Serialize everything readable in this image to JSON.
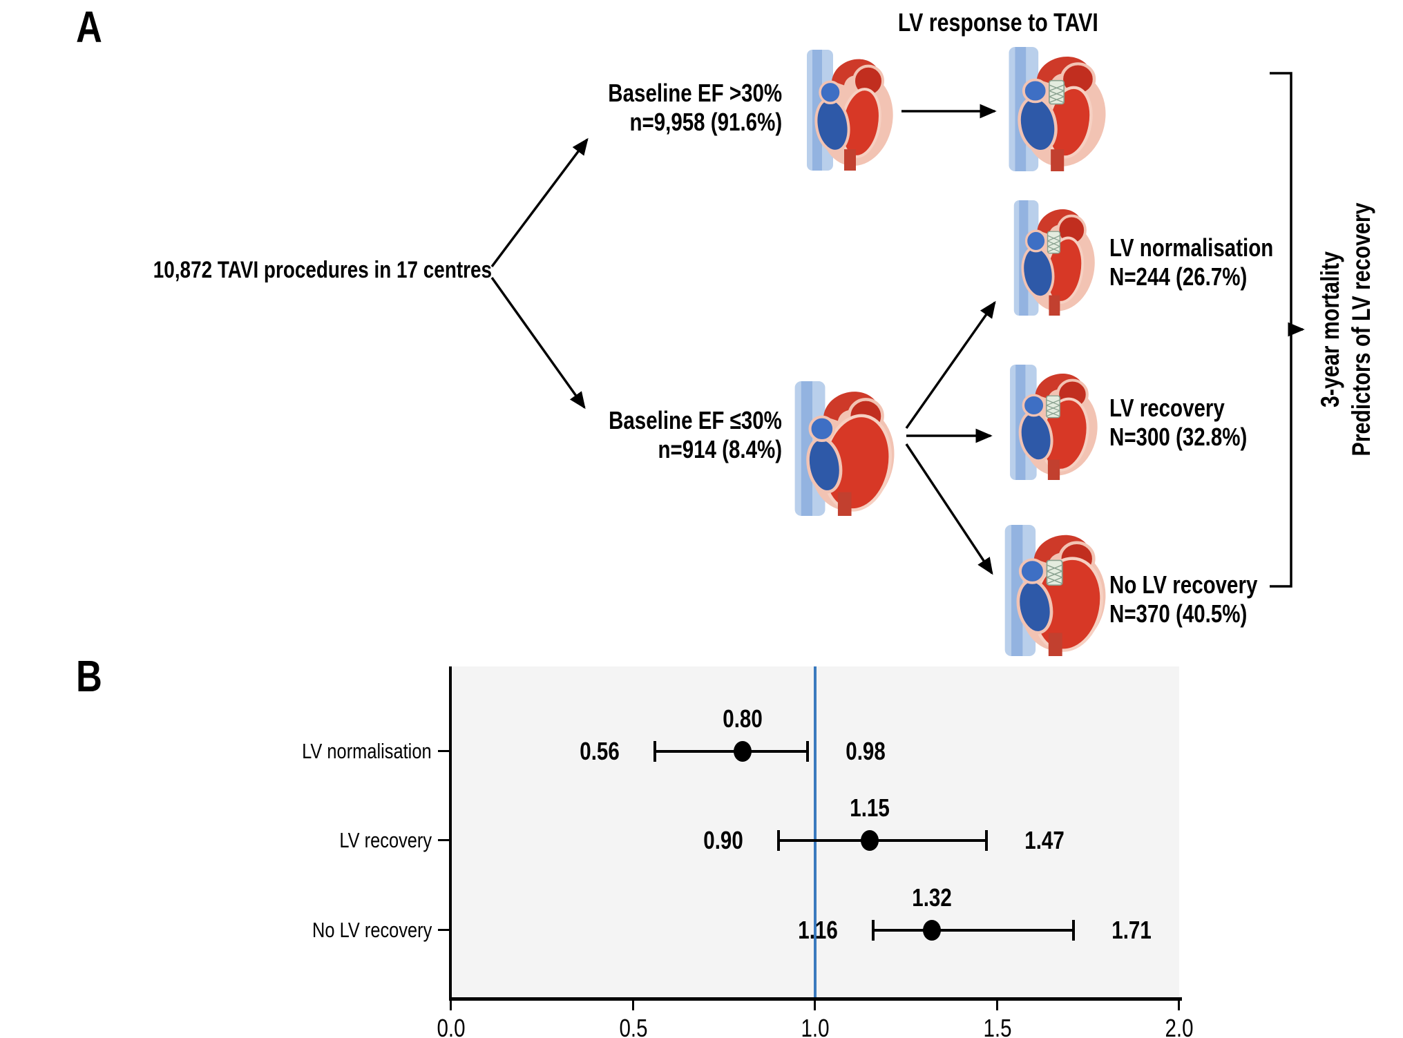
{
  "panel_a": {
    "label": "A",
    "title": "LV response to TAVI",
    "root": "10,872 TAVI procedures in 17 centres",
    "branches": [
      {
        "line1": "Baseline EF >30%",
        "line2": "n=9,958 (91.6%)",
        "heart": {
          "size": "normal",
          "stent": false
        },
        "post_heart": {
          "size": "normal",
          "stent": true
        }
      },
      {
        "line1": "Baseline EF ≤30%",
        "line2": "n=914 (8.4%)",
        "heart": {
          "size": "dilated",
          "stent": false
        }
      }
    ],
    "outcomes": [
      {
        "line1": "LV normalisation",
        "line2": "N=244 (26.7%)",
        "heart": {
          "size": "normal",
          "stent": true
        }
      },
      {
        "line1": "LV recovery",
        "line2": "N=300 (32.8%)",
        "heart": {
          "size": "mid",
          "stent": true
        }
      },
      {
        "line1": "No LV recovery",
        "line2": "N=370 (40.5%)",
        "heart": {
          "size": "dilated",
          "stent": true
        }
      }
    ],
    "bracket": {
      "line1": "3-year mortality",
      "line2": "Predictors of LV recovery"
    }
  },
  "panel_b": {
    "label": "B"
  },
  "chart_data": {
    "type": "forest",
    "title": "",
    "xlabel": "",
    "ylabel": "",
    "categories": [
      "LV normalisation",
      "LV recovery",
      "No LV recovery"
    ],
    "points": [
      {
        "label": "LV normalisation",
        "est": 0.8,
        "lo": 0.56,
        "hi": 0.98
      },
      {
        "label": "LV recovery",
        "est": 1.15,
        "lo": 0.9,
        "hi": 1.47
      },
      {
        "label": "No LV recovery",
        "est": 1.32,
        "lo": 1.16,
        "hi": 1.71
      }
    ],
    "xlim": [
      0.0,
      2.0
    ],
    "xticks": [
      0.0,
      0.5,
      1.0,
      1.5,
      2.0
    ],
    "refline": 1.0,
    "legend": "none",
    "grid": "off",
    "colors": {
      "refline": "#3a7abe",
      "plot_bg": "#f4f4f4",
      "marker": "#000000",
      "axis": "#000000"
    }
  }
}
